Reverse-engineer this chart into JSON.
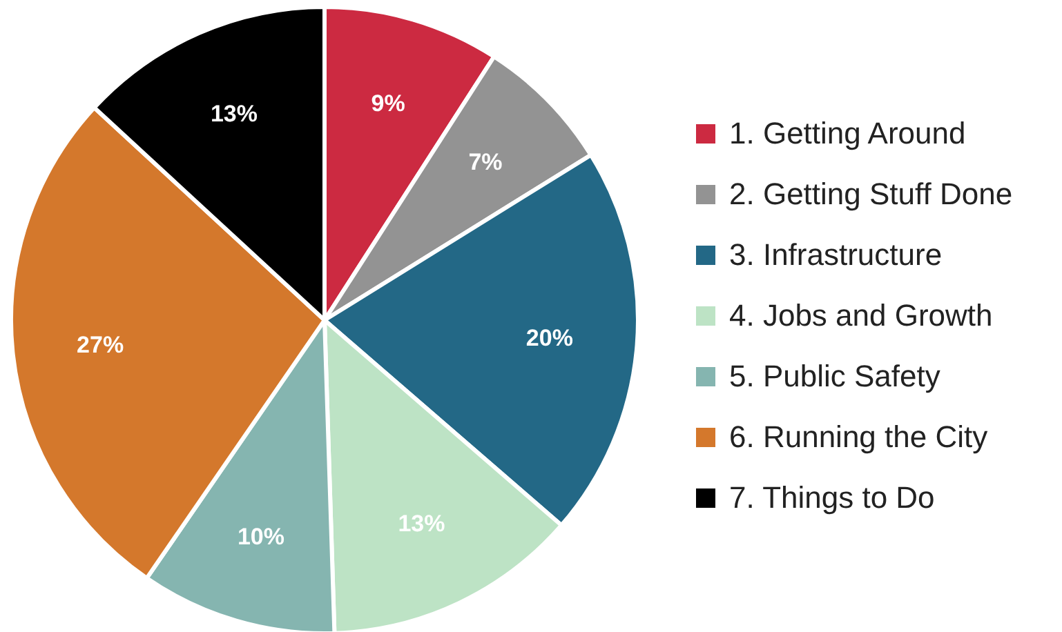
{
  "chart_data": {
    "type": "pie",
    "categories": [
      "1. Getting Around",
      "2. Getting Stuff Done",
      "3. Infrastructure",
      "4. Jobs and Growth",
      "5. Public Safety",
      "6. Running the City",
      "7. Things to Do"
    ],
    "values": [
      9,
      7,
      20,
      13,
      10,
      27,
      13
    ],
    "value_labels": [
      "9%",
      "7%",
      "20%",
      "13%",
      "10%",
      "27%",
      "13%"
    ],
    "colors": [
      "#cc2a41",
      "#939393",
      "#236886",
      "#bde3c5",
      "#85b5b0",
      "#d4782c",
      "#000000"
    ],
    "legend": "right"
  }
}
